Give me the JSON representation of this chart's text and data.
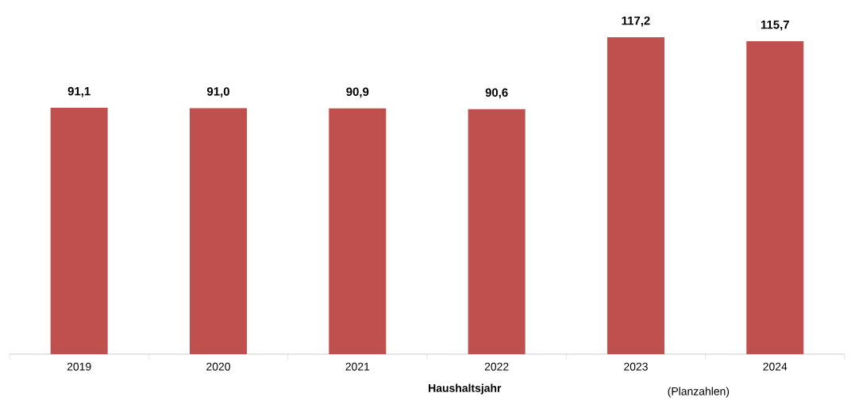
{
  "chart_data": {
    "type": "bar",
    "categories": [
      "2019",
      "2020",
      "2021",
      "2022",
      "2023",
      "2024"
    ],
    "values": [
      91.1,
      91.0,
      90.9,
      90.6,
      117.2,
      115.7
    ],
    "value_labels": [
      "91,1",
      "91,0",
      "90,9",
      "90,6",
      "117,2",
      "115,7"
    ],
    "color": "#c0504d",
    "xlabel": "Haushaltsjahr",
    "annotations": [
      "(Planzahlen)"
    ]
  }
}
